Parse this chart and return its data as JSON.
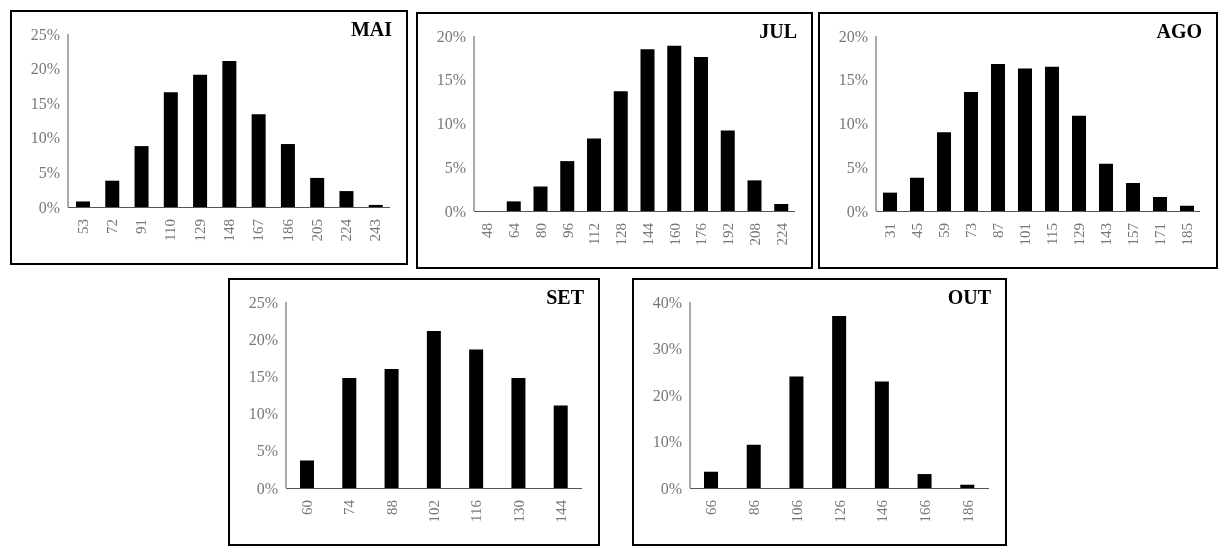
{
  "chart_data": [
    {
      "type": "bar",
      "title": "MAI",
      "categories": [
        "53",
        "72",
        "91",
        "110",
        "129",
        "148",
        "167",
        "186",
        "205",
        "224",
        "243"
      ],
      "values": [
        0.8,
        3.8,
        8.8,
        16.6,
        19.1,
        21.1,
        13.4,
        9.1,
        4.2,
        2.3,
        0.3
      ],
      "color": "#000000",
      "ylim": [
        0,
        25
      ],
      "yticks": [
        {
          "value": 0,
          "label": "0%"
        },
        {
          "value": 5,
          "label": "5%"
        },
        {
          "value": 10,
          "label": "10%"
        },
        {
          "value": 15,
          "label": "15%"
        },
        {
          "value": 20,
          "label": "20%"
        },
        {
          "value": 25,
          "label": "25%"
        }
      ],
      "grid": false,
      "legend": false
    },
    {
      "type": "bar",
      "title": "JUL",
      "categories": [
        "48",
        "64",
        "80",
        "96",
        "112",
        "128",
        "144",
        "160",
        "176",
        "192",
        "208",
        "224"
      ],
      "values": [
        0,
        1.1,
        2.8,
        5.7,
        8.3,
        13.7,
        18.5,
        18.9,
        17.6,
        9.2,
        3.5,
        0.8
      ],
      "color": "#000000",
      "ylim": [
        0,
        20
      ],
      "yticks": [
        {
          "value": 0,
          "label": "0%"
        },
        {
          "value": 5,
          "label": "5%"
        },
        {
          "value": 10,
          "label": "10%"
        },
        {
          "value": 15,
          "label": "15%"
        },
        {
          "value": 20,
          "label": "20%"
        }
      ],
      "grid": false,
      "legend": false
    },
    {
      "type": "bar",
      "title": "AGO",
      "categories": [
        "31",
        "45",
        "59",
        "73",
        "87",
        "101",
        "115",
        "129",
        "143",
        "157",
        "171",
        "185"
      ],
      "values": [
        2.1,
        3.8,
        9.0,
        13.6,
        16.8,
        16.3,
        16.5,
        10.9,
        5.4,
        3.2,
        1.6,
        0.6
      ],
      "color": "#000000",
      "ylim": [
        0,
        20
      ],
      "yticks": [
        {
          "value": 0,
          "label": "0%"
        },
        {
          "value": 5,
          "label": "5%"
        },
        {
          "value": 10,
          "label": "10%"
        },
        {
          "value": 15,
          "label": "15%"
        },
        {
          "value": 20,
          "label": "20%"
        }
      ],
      "grid": false,
      "legend": false
    },
    {
      "type": "bar",
      "title": "SET",
      "categories": [
        "60",
        "74",
        "88",
        "102",
        "116",
        "130",
        "144"
      ],
      "values": [
        3.7,
        14.8,
        16.0,
        21.1,
        18.6,
        14.8,
        11.1
      ],
      "color": "#000000",
      "ylim": [
        0,
        25
      ],
      "yticks": [
        {
          "value": 0,
          "label": "0%"
        },
        {
          "value": 5,
          "label": "5%"
        },
        {
          "value": 10,
          "label": "10%"
        },
        {
          "value": 15,
          "label": "15%"
        },
        {
          "value": 20,
          "label": "20%"
        },
        {
          "value": 25,
          "label": "25%"
        }
      ],
      "grid": false,
      "legend": false
    },
    {
      "type": "bar",
      "title": "OUT",
      "categories": [
        "66",
        "86",
        "106",
        "126",
        "146",
        "166",
        "186"
      ],
      "values": [
        3.5,
        9.3,
        24.0,
        37.0,
        22.9,
        3.0,
        0.7
      ],
      "color": "#000000",
      "ylim": [
        0,
        40
      ],
      "yticks": [
        {
          "value": 0,
          "label": "0%"
        },
        {
          "value": 10,
          "label": "10%"
        },
        {
          "value": 20,
          "label": "20%"
        },
        {
          "value": 30,
          "label": "30%"
        },
        {
          "value": 40,
          "label": "40%"
        }
      ],
      "grid": false,
      "legend": false
    }
  ]
}
